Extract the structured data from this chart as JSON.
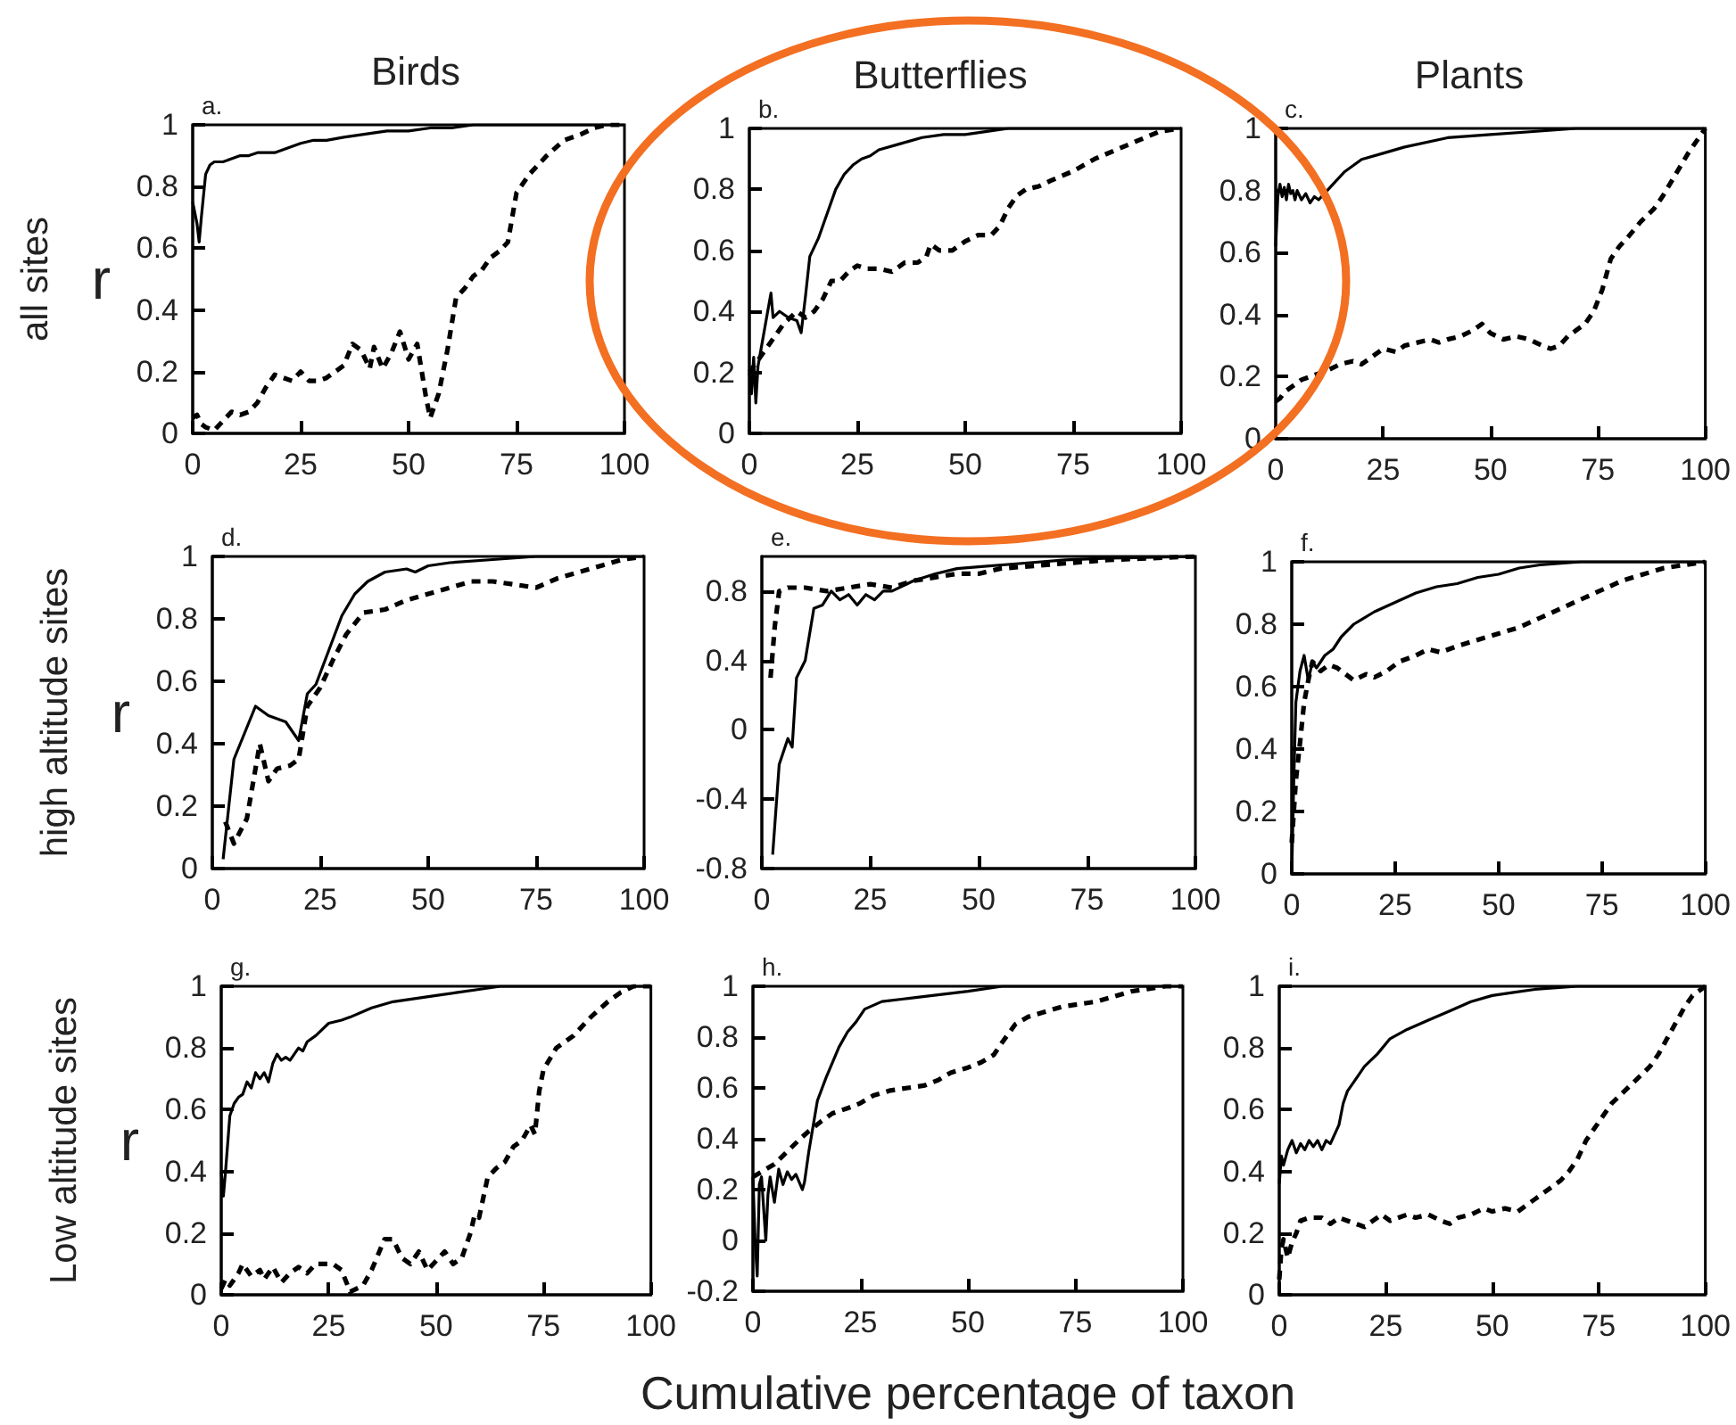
{
  "chart_data": [
    {
      "type": "line",
      "title": "Birds",
      "subtitle": "a.",
      "ylabel": "r",
      "annotations": [
        "all sites"
      ],
      "xlim": [
        0,
        100
      ],
      "xticks": [
        0,
        25,
        50,
        75,
        100
      ],
      "ylim": [
        0,
        1
      ],
      "yticks": [
        0,
        0.2,
        0.4,
        0.6,
        0.8,
        1
      ],
      "series": [
        {
          "color": "#000000",
          "line_style": "solid",
          "x": [
            0,
            1,
            1.5,
            2,
            3,
            4,
            5,
            7,
            9,
            11,
            13,
            15,
            17,
            19,
            21,
            23,
            25,
            28,
            31,
            35,
            40,
            45,
            50,
            55,
            60,
            65,
            70,
            80,
            90,
            100
          ],
          "values": [
            0.75,
            0.68,
            0.62,
            0.7,
            0.84,
            0.87,
            0.88,
            0.88,
            0.89,
            0.9,
            0.9,
            0.91,
            0.91,
            0.91,
            0.92,
            0.93,
            0.94,
            0.95,
            0.95,
            0.96,
            0.97,
            0.98,
            0.98,
            0.99,
            0.99,
            1,
            1,
            1,
            1,
            1
          ]
        },
        {
          "color": "#000000",
          "line_style": "dashed",
          "x": [
            0,
            1,
            2,
            3,
            5,
            7,
            9,
            11,
            13,
            15,
            17,
            19,
            21,
            23,
            25,
            27,
            29,
            31,
            33,
            35,
            37,
            39,
            41,
            42,
            44,
            46,
            48,
            50,
            52,
            54,
            55,
            57,
            59,
            61,
            63,
            65,
            67,
            69,
            71,
            73,
            75,
            78,
            82,
            86,
            90,
            93,
            96,
            100
          ],
          "values": [
            0.05,
            0.06,
            0.03,
            0.02,
            0.01,
            0.04,
            0.07,
            0.06,
            0.07,
            0.1,
            0.15,
            0.19,
            0.18,
            0.17,
            0.2,
            0.17,
            0.17,
            0.18,
            0.2,
            0.22,
            0.29,
            0.27,
            0.21,
            0.28,
            0.21,
            0.26,
            0.33,
            0.24,
            0.29,
            0.12,
            0.05,
            0.13,
            0.27,
            0.44,
            0.47,
            0.51,
            0.53,
            0.57,
            0.59,
            0.62,
            0.78,
            0.84,
            0.9,
            0.95,
            0.97,
            0.99,
            1,
            1
          ]
        }
      ]
    },
    {
      "type": "line",
      "title": "Butterflies",
      "subtitle": "b.",
      "xlim": [
        0,
        100
      ],
      "xticks": [
        0,
        25,
        50,
        75,
        100
      ],
      "ylim": [
        0,
        1
      ],
      "yticks": [
        0,
        0.2,
        0.4,
        0.6,
        0.8,
        1
      ],
      "series": [
        {
          "color": "#000000",
          "line_style": "solid",
          "x": [
            0,
            0.5,
            1,
            1.5,
            2,
            3,
            4,
            5,
            5.5,
            7,
            9,
            11,
            12,
            13,
            14,
            16,
            18,
            20,
            22,
            24,
            26,
            28,
            30,
            35,
            40,
            45,
            50,
            55,
            60,
            70,
            80,
            90,
            100
          ],
          "values": [
            0.2,
            0.13,
            0.25,
            0.1,
            0.22,
            0.3,
            0.38,
            0.46,
            0.38,
            0.4,
            0.38,
            0.37,
            0.33,
            0.45,
            0.58,
            0.64,
            0.72,
            0.8,
            0.85,
            0.88,
            0.9,
            0.91,
            0.93,
            0.95,
            0.97,
            0.98,
            0.98,
            0.99,
            1,
            1,
            1,
            1,
            1
          ]
        },
        {
          "color": "#000000",
          "line_style": "dashed",
          "x": [
            0,
            2,
            4,
            6,
            8,
            11,
            13,
            15,
            17,
            19,
            21,
            23,
            25,
            27,
            30,
            33,
            36,
            39,
            41,
            42,
            44,
            47,
            50,
            53,
            56,
            58,
            60,
            62,
            64,
            67,
            70,
            75,
            80,
            85,
            90,
            95,
            100
          ],
          "values": [
            0.2,
            0.24,
            0.28,
            0.32,
            0.36,
            0.4,
            0.38,
            0.4,
            0.44,
            0.5,
            0.5,
            0.53,
            0.55,
            0.54,
            0.54,
            0.53,
            0.56,
            0.56,
            0.58,
            0.62,
            0.6,
            0.6,
            0.63,
            0.65,
            0.65,
            0.68,
            0.74,
            0.78,
            0.8,
            0.81,
            0.83,
            0.86,
            0.9,
            0.93,
            0.96,
            0.99,
            1
          ]
        }
      ]
    },
    {
      "type": "line",
      "title": "Plants",
      "subtitle": "c.",
      "xlim": [
        0,
        100
      ],
      "xticks": [
        0,
        25,
        50,
        75,
        100
      ],
      "ylim": [
        0,
        1
      ],
      "yticks": [
        0,
        0.2,
        0.4,
        0.6,
        0.8,
        1
      ],
      "series": [
        {
          "color": "#000000",
          "line_style": "solid",
          "x": [
            0,
            0.5,
            1,
            1.5,
            2,
            2.5,
            3,
            3.5,
            4,
            4.5,
            5,
            6,
            7,
            8,
            9,
            10,
            12,
            14,
            16,
            18,
            20,
            25,
            30,
            40,
            50,
            60,
            70,
            80,
            90,
            100
          ],
          "values": [
            0.62,
            0.78,
            0.82,
            0.78,
            0.81,
            0.77,
            0.82,
            0.79,
            0.8,
            0.77,
            0.8,
            0.77,
            0.79,
            0.76,
            0.78,
            0.77,
            0.8,
            0.83,
            0.86,
            0.88,
            0.9,
            0.92,
            0.94,
            0.97,
            0.98,
            0.99,
            1,
            1,
            1,
            1
          ]
        },
        {
          "color": "#000000",
          "line_style": "dashed",
          "x": [
            0,
            1,
            2,
            4,
            6,
            8,
            10,
            12,
            15,
            18,
            20,
            22,
            25,
            28,
            30,
            33,
            36,
            38,
            40,
            43,
            46,
            48,
            50,
            53,
            56,
            59,
            62,
            64,
            66,
            68,
            70,
            72,
            74,
            76,
            78,
            80,
            82,
            85,
            88,
            90,
            93,
            96,
            100
          ],
          "values": [
            0.12,
            0.13,
            0.15,
            0.17,
            0.19,
            0.2,
            0.21,
            0.22,
            0.24,
            0.25,
            0.24,
            0.26,
            0.29,
            0.28,
            0.3,
            0.31,
            0.32,
            0.31,
            0.32,
            0.33,
            0.35,
            0.37,
            0.34,
            0.32,
            0.33,
            0.32,
            0.3,
            0.29,
            0.3,
            0.33,
            0.35,
            0.37,
            0.41,
            0.48,
            0.58,
            0.62,
            0.65,
            0.7,
            0.74,
            0.78,
            0.85,
            0.92,
            1
          ]
        }
      ]
    },
    {
      "type": "line",
      "subtitle": "d.",
      "ylabel": "r",
      "annotations": [
        "high altitude sites"
      ],
      "xlim": [
        0,
        100
      ],
      "xticks": [
        0,
        25,
        50,
        75,
        100
      ],
      "ylim": [
        0,
        1
      ],
      "yticks": [
        0,
        0.2,
        0.4,
        0.6,
        0.8,
        1
      ],
      "series": [
        {
          "color": "#000000",
          "line_style": "solid",
          "x": [
            2.5,
            5,
            10,
            13,
            17,
            20,
            22,
            24,
            27,
            30,
            33,
            36,
            40,
            45,
            47,
            50,
            55,
            65,
            75,
            85,
            100
          ],
          "values": [
            0.03,
            0.35,
            0.52,
            0.49,
            0.47,
            0.41,
            0.56,
            0.59,
            0.7,
            0.81,
            0.88,
            0.92,
            0.95,
            0.96,
            0.95,
            0.97,
            0.98,
            0.99,
            1,
            1,
            1
          ]
        },
        {
          "color": "#000000",
          "line_style": "dashed",
          "x": [
            3,
            5,
            8,
            10,
            11,
            13,
            15,
            18,
            20,
            22,
            25,
            28,
            31,
            35,
            40,
            45,
            50,
            55,
            60,
            65,
            70,
            75,
            80,
            85,
            90,
            95,
            100
          ],
          "values": [
            0.15,
            0.08,
            0.16,
            0.32,
            0.4,
            0.28,
            0.32,
            0.33,
            0.35,
            0.52,
            0.58,
            0.67,
            0.75,
            0.82,
            0.83,
            0.86,
            0.88,
            0.9,
            0.92,
            0.92,
            0.91,
            0.9,
            0.93,
            0.95,
            0.97,
            0.99,
            1
          ]
        }
      ]
    },
    {
      "type": "line",
      "subtitle": "e.",
      "xlim": [
        0,
        100
      ],
      "xticks": [
        0,
        25,
        50,
        75,
        100
      ],
      "ylim": [
        -0.8,
        1
      ],
      "yticks": [
        -0.8,
        -0.4,
        0,
        0.4,
        0.8
      ],
      "series": [
        {
          "color": "#000000",
          "line_style": "solid",
          "x": [
            2.5,
            4,
            6,
            7,
            8,
            10,
            12,
            14,
            16,
            18,
            20,
            22,
            24,
            26,
            28,
            30,
            35,
            40,
            45,
            50,
            60,
            70,
            80,
            100
          ],
          "values": [
            -0.72,
            -0.2,
            -0.05,
            -0.1,
            0.3,
            0.4,
            0.7,
            0.72,
            0.8,
            0.75,
            0.78,
            0.72,
            0.78,
            0.75,
            0.8,
            0.8,
            0.86,
            0.9,
            0.93,
            0.94,
            0.96,
            0.98,
            0.99,
            1
          ]
        },
        {
          "color": "#000000",
          "line_style": "dashed",
          "x": [
            2,
            3,
            4,
            6,
            10,
            15,
            20,
            25,
            30,
            35,
            40,
            45,
            50,
            55,
            60,
            70,
            80,
            90,
            100
          ],
          "values": [
            0.3,
            0.6,
            0.8,
            0.82,
            0.82,
            0.8,
            0.82,
            0.84,
            0.82,
            0.86,
            0.88,
            0.9,
            0.9,
            0.93,
            0.94,
            0.96,
            0.98,
            0.99,
            1
          ]
        }
      ]
    },
    {
      "type": "line",
      "subtitle": "f.",
      "xlim": [
        0,
        100
      ],
      "xticks": [
        0,
        25,
        50,
        75,
        100
      ],
      "ylim": [
        0,
        1
      ],
      "yticks": [
        0,
        0.2,
        0.4,
        0.6,
        0.8,
        1
      ],
      "series": [
        {
          "color": "#000000",
          "line_style": "solid",
          "x": [
            0,
            0.5,
            1,
            1.5,
            2,
            3,
            4,
            5,
            6,
            8,
            10,
            12,
            15,
            20,
            25,
            30,
            35,
            40,
            45,
            50,
            55,
            60,
            70,
            80,
            100
          ],
          "values": [
            0,
            0.3,
            0.55,
            0.6,
            0.65,
            0.7,
            0.62,
            0.68,
            0.66,
            0.7,
            0.72,
            0.76,
            0.8,
            0.84,
            0.87,
            0.9,
            0.92,
            0.93,
            0.95,
            0.96,
            0.98,
            0.99,
            1,
            1,
            1
          ]
        },
        {
          "color": "#000000",
          "line_style": "dashed",
          "x": [
            0,
            1,
            2,
            3,
            4,
            5,
            7,
            9,
            11,
            13,
            15,
            18,
            20,
            23,
            26,
            30,
            33,
            36,
            40,
            45,
            50,
            55,
            60,
            65,
            70,
            75,
            80,
            85,
            90,
            95,
            100
          ],
          "values": [
            0.1,
            0.3,
            0.42,
            0.55,
            0.62,
            0.68,
            0.65,
            0.67,
            0.66,
            0.64,
            0.62,
            0.64,
            0.63,
            0.65,
            0.68,
            0.7,
            0.72,
            0.71,
            0.73,
            0.75,
            0.77,
            0.79,
            0.82,
            0.85,
            0.88,
            0.91,
            0.94,
            0.96,
            0.98,
            0.99,
            1
          ]
        }
      ]
    },
    {
      "type": "line",
      "subtitle": "g.",
      "ylabel": "r",
      "annotations": [
        "Low altitude sites"
      ],
      "xlim": [
        0,
        100
      ],
      "xticks": [
        0,
        25,
        50,
        75,
        100
      ],
      "ylim": [
        0,
        1
      ],
      "yticks": [
        0,
        0.2,
        0.4,
        0.6,
        0.8,
        1
      ],
      "series": [
        {
          "color": "#000000",
          "line_style": "solid",
          "x": [
            0,
            0.5,
            1,
            2,
            3,
            4,
            5,
            6,
            7,
            8,
            9,
            10,
            11,
            12,
            13,
            14,
            15,
            16,
            17,
            18,
            19,
            20,
            22,
            25,
            28,
            30,
            35,
            40,
            45,
            50,
            55,
            60,
            65,
            80,
            100
          ],
          "values": [
            0.4,
            0.32,
            0.4,
            0.58,
            0.62,
            0.64,
            0.65,
            0.69,
            0.67,
            0.72,
            0.7,
            0.72,
            0.69,
            0.75,
            0.78,
            0.76,
            0.77,
            0.76,
            0.78,
            0.8,
            0.79,
            0.82,
            0.84,
            0.88,
            0.89,
            0.9,
            0.93,
            0.95,
            0.96,
            0.97,
            0.98,
            0.99,
            1,
            1,
            1
          ]
        },
        {
          "color": "#000000",
          "line_style": "dashed",
          "x": [
            0,
            1,
            2,
            4,
            5,
            7,
            9,
            10,
            12,
            14,
            16,
            18,
            20,
            22,
            24,
            26,
            28,
            30,
            33,
            35,
            38,
            40,
            42,
            44,
            46,
            48,
            50,
            52,
            54,
            56,
            58,
            59,
            60,
            62,
            64,
            66,
            68,
            70,
            72,
            73,
            74,
            75,
            78,
            82,
            86,
            90,
            93,
            96,
            100
          ],
          "values": [
            0.02,
            0.05,
            0.03,
            0.07,
            0.1,
            0.06,
            0.08,
            0.05,
            0.09,
            0.04,
            0.07,
            0.09,
            0.07,
            0.1,
            0.1,
            0.1,
            0.08,
            0.01,
            0.03,
            0.08,
            0.18,
            0.18,
            0.12,
            0.1,
            0.14,
            0.08,
            0.11,
            0.14,
            0.1,
            0.12,
            0.2,
            0.26,
            0.25,
            0.38,
            0.41,
            0.43,
            0.48,
            0.5,
            0.55,
            0.52,
            0.66,
            0.73,
            0.8,
            0.84,
            0.9,
            0.95,
            0.98,
            1,
            1
          ]
        }
      ]
    },
    {
      "type": "line",
      "subtitle": "h.",
      "xlabel": "Cumulative percentage of taxon",
      "xlim": [
        0,
        100
      ],
      "xticks": [
        0,
        25,
        50,
        75,
        100
      ],
      "ylim": [
        -0.2,
        1
      ],
      "yticks": [
        -0.2,
        0,
        0.2,
        0.4,
        0.6,
        0.8,
        1
      ],
      "series": [
        {
          "color": "#000000",
          "line_style": "solid",
          "x": [
            0,
            0.5,
            1,
            1.5,
            2,
            3,
            3.5,
            4,
            5,
            6,
            7,
            8,
            9,
            10,
            11.5,
            12,
            13,
            14,
            15,
            17,
            20,
            22,
            24,
            26,
            30,
            35,
            40,
            50,
            58,
            70,
            100
          ],
          "values": [
            0.25,
            0,
            -0.14,
            0.22,
            0.25,
            0,
            0.18,
            0.25,
            0.15,
            0.28,
            0.22,
            0.27,
            0.24,
            0.26,
            0.2,
            0.23,
            0.35,
            0.45,
            0.55,
            0.64,
            0.76,
            0.82,
            0.86,
            0.91,
            0.94,
            0.95,
            0.96,
            0.98,
            1,
            1,
            1
          ]
        },
        {
          "color": "#000000",
          "line_style": "dashed",
          "x": [
            0,
            2,
            5,
            8,
            11,
            13,
            16,
            18.5,
            22,
            25,
            28,
            32,
            36,
            40,
            43,
            46,
            50,
            53,
            56,
            58,
            61,
            64,
            68,
            72,
            76,
            80,
            84,
            88,
            92,
            96,
            100
          ],
          "values": [
            0.25,
            0.27,
            0.3,
            0.35,
            0.4,
            0.43,
            0.47,
            0.5,
            0.52,
            0.54,
            0.57,
            0.59,
            0.6,
            0.61,
            0.63,
            0.66,
            0.68,
            0.7,
            0.73,
            0.78,
            0.85,
            0.88,
            0.9,
            0.92,
            0.93,
            0.94,
            0.96,
            0.98,
            0.99,
            1,
            1
          ]
        }
      ]
    },
    {
      "type": "line",
      "subtitle": "i.",
      "xlim": [
        0,
        100
      ],
      "xticks": [
        0,
        25,
        50,
        75,
        100
      ],
      "ylim": [
        0,
        1
      ],
      "yticks": [
        0,
        0.2,
        0.4,
        0.6,
        0.8,
        1
      ],
      "series": [
        {
          "color": "#000000",
          "line_style": "solid",
          "x": [
            0,
            0.5,
            1,
            2,
            3,
            4,
            5,
            6,
            7,
            8,
            9,
            10,
            11,
            12,
            13,
            14,
            15,
            16,
            18,
            20,
            23,
            26,
            30,
            35,
            40,
            45,
            50,
            55,
            60,
            70,
            80,
            100
          ],
          "values": [
            0.36,
            0.45,
            0.42,
            0.47,
            0.5,
            0.46,
            0.49,
            0.47,
            0.5,
            0.48,
            0.5,
            0.47,
            0.5,
            0.49,
            0.52,
            0.55,
            0.62,
            0.66,
            0.7,
            0.74,
            0.78,
            0.83,
            0.86,
            0.89,
            0.92,
            0.95,
            0.97,
            0.98,
            0.99,
            1,
            1,
            1
          ]
        },
        {
          "color": "#000000",
          "line_style": "dashed",
          "x": [
            0,
            0.5,
            1,
            2,
            3,
            4,
            5,
            7,
            10,
            12,
            14,
            16,
            18,
            20,
            22,
            24,
            26,
            28,
            30,
            32,
            35,
            38,
            40,
            42,
            45,
            48,
            50,
            53,
            56,
            58,
            60,
            63,
            66,
            68,
            70,
            72,
            75,
            78,
            81,
            84,
            87,
            89,
            91,
            93,
            95,
            97,
            100
          ],
          "values": [
            0.05,
            0.15,
            0.18,
            0.12,
            0.17,
            0.2,
            0.24,
            0.25,
            0.25,
            0.23,
            0.25,
            0.24,
            0.23,
            0.22,
            0.24,
            0.26,
            0.24,
            0.25,
            0.26,
            0.25,
            0.26,
            0.24,
            0.23,
            0.25,
            0.26,
            0.28,
            0.27,
            0.28,
            0.27,
            0.29,
            0.31,
            0.34,
            0.37,
            0.4,
            0.44,
            0.5,
            0.56,
            0.62,
            0.66,
            0.7,
            0.74,
            0.78,
            0.83,
            0.88,
            0.93,
            0.97,
            1
          ]
        }
      ]
    }
  ]
}
